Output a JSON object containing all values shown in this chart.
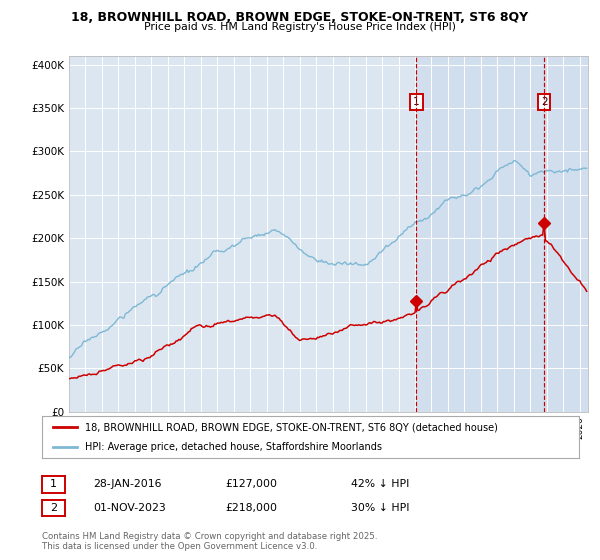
{
  "title_line1": "18, BROWNHILL ROAD, BROWN EDGE, STOKE-ON-TRENT, ST6 8QY",
  "title_line2": "Price paid vs. HM Land Registry's House Price Index (HPI)",
  "ylim": [
    0,
    410000
  ],
  "yticks": [
    0,
    50000,
    100000,
    150000,
    200000,
    250000,
    300000,
    350000,
    400000
  ],
  "xlim_start": 1995.0,
  "xlim_end": 2026.5,
  "bg_color": "#ffffff",
  "plot_bg_color": "#dce6f1",
  "shade_color": "#c8d8ed",
  "grid_color": "#ffffff",
  "red_color": "#cc0000",
  "blue_color": "#7eb8d4",
  "sale1_x": 2016.08,
  "sale1_y": 127000,
  "sale2_x": 2023.84,
  "sale2_y": 218000,
  "legend_label_red": "18, BROWNHILL ROAD, BROWN EDGE, STOKE-ON-TRENT, ST6 8QY (detached house)",
  "legend_label_blue": "HPI: Average price, detached house, Staffordshire Moorlands",
  "annotation1_date": "28-JAN-2016",
  "annotation1_price": "£127,000",
  "annotation1_hpi": "42% ↓ HPI",
  "annotation2_date": "01-NOV-2023",
  "annotation2_price": "£218,000",
  "annotation2_hpi": "30% ↓ HPI",
  "footer": "Contains HM Land Registry data © Crown copyright and database right 2025.\nThis data is licensed under the Open Government Licence v3.0."
}
